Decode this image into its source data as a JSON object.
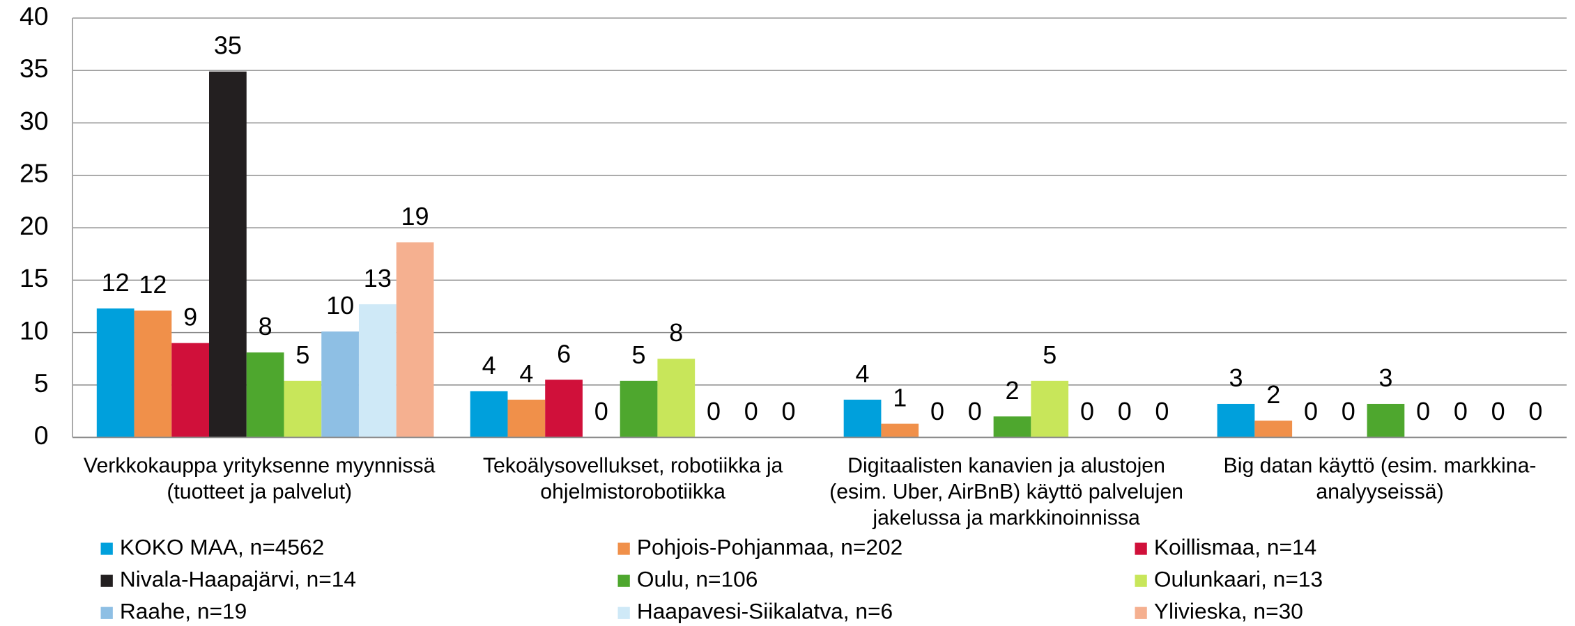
{
  "chart_data": {
    "type": "bar",
    "categories": [
      "Verkkokauppa yrityksenne myynnissä (tuotteet ja palvelut)",
      "Tekoälysovellukset, robotiikka ja ohjelmistorobotiikka",
      "Digitaalisten kanavien ja alustojen (esim. Uber, AirBnB) käyttö palvelujen jakelussa ja markkinoinnissa",
      "Big datan käyttö (esim. markkina-analyyseissä)"
    ],
    "series": [
      {
        "name": "KOKO MAA, n=4562",
        "color": "#00a0dc",
        "values": [
          12.3,
          4.4,
          3.6,
          3.2
        ],
        "value_labels": [
          "12",
          "4",
          "4",
          "3"
        ]
      },
      {
        "name": "Pohjois-Pohjanmaa, n=202",
        "color": "#f0904a",
        "values": [
          12.1,
          3.6,
          1.3,
          1.6
        ],
        "value_labels": [
          "12",
          "4",
          "1",
          "2"
        ]
      },
      {
        "name": "Koillismaa, n=14",
        "color": "#d0103a",
        "values": [
          9.0,
          5.5,
          0,
          0
        ],
        "value_labels": [
          "9",
          "6",
          "0",
          "0"
        ]
      },
      {
        "name": "Nivala-Haapajärvi, n=14",
        "color": "#231f20",
        "values": [
          34.9,
          0,
          0,
          0
        ],
        "value_labels": [
          "35",
          "0",
          "0",
          "0"
        ]
      },
      {
        "name": "Oulu, n=106",
        "color": "#4ea72e",
        "values": [
          8.1,
          5.4,
          2.0,
          3.2
        ],
        "value_labels": [
          "8",
          "5",
          "2",
          "3"
        ]
      },
      {
        "name": "Oulunkaari, n=13",
        "color": "#c8e65a",
        "values": [
          5.4,
          7.5,
          5.4,
          0
        ],
        "value_labels": [
          "5",
          "8",
          "5",
          "0"
        ]
      },
      {
        "name": "Raahe, n=19",
        "color": "#8ebfe4",
        "values": [
          10.1,
          0,
          0,
          0
        ],
        "value_labels": [
          "10",
          "0",
          "0",
          "0"
        ]
      },
      {
        "name": "Haapavesi-Siikalatva, n=6",
        "color": "#cfe9f7",
        "values": [
          12.7,
          0,
          0,
          0
        ],
        "value_labels": [
          "13",
          "0",
          "0",
          "0"
        ]
      },
      {
        "name": "Ylivieska, n=30",
        "color": "#f5b090",
        "values": [
          18.6,
          0,
          0,
          0
        ],
        "value_labels": [
          "19",
          "0",
          "0",
          "0"
        ]
      }
    ],
    "ylim": [
      0,
      40
    ],
    "yticks": [
      0,
      5,
      10,
      15,
      20,
      25,
      30,
      35,
      40
    ],
    "grid": true
  }
}
